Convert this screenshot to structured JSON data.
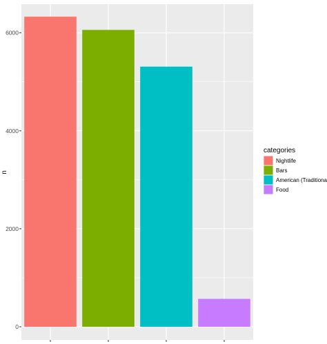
{
  "chart_data": {
    "type": "bar",
    "categories": [
      "Nightlife",
      "Bars",
      "American (Traditional)",
      "Food"
    ],
    "values": [
      6330,
      6060,
      5310,
      570
    ],
    "colors": [
      "#F8766D",
      "#7CAE00",
      "#00BFC4",
      "#C77CFF"
    ],
    "title": "",
    "xlabel": "",
    "ylabel": "n",
    "ylim": [
      0,
      6600
    ],
    "yticks": [
      0,
      2000,
      4000,
      6000
    ],
    "grid": true,
    "panel_background": "#EBEBEB",
    "legend": {
      "title": "categories",
      "entries": [
        "Nightlife",
        "Bars",
        "American (Traditional)",
        "Food"
      ],
      "placement": "right"
    }
  }
}
